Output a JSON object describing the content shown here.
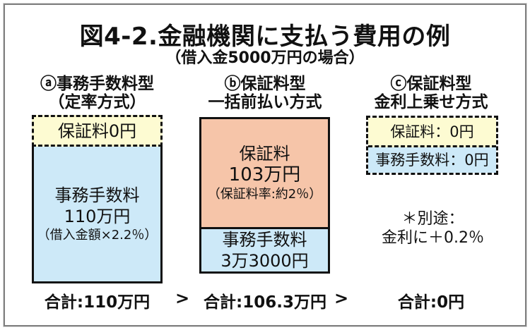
{
  "title": "図4-2.金融機関に支払う費用の例",
  "subtitle": "（借入金5000万円の場合）",
  "columns": {
    "a": {
      "header1": "ⓐ事務手数料型",
      "header2": "（定率方式）",
      "guarantee_label": "保証料0円",
      "fee_line1": "事務手数料",
      "fee_line2": "110万円",
      "fee_line3": "（借入金額×2.2％）",
      "total": "合計:110万円"
    },
    "b": {
      "header1": "ⓑ保証料型",
      "header2": "一括前払い方式",
      "guarantee_line1": "保証料",
      "guarantee_line2": "103万円",
      "guarantee_line3": "（保証料率:約2％）",
      "fee_line1": "事務手数料",
      "fee_line2": "3万3000円",
      "total": "合計:106.3万円"
    },
    "c": {
      "header1": "ⓒ保証料型",
      "header2": "金利上乗せ方式",
      "guarantee_label": "保証料：0円",
      "fee_label": "事務手数料：0円",
      "note_line1": "＊別途：",
      "note_line2": "金利に＋0.2％",
      "total": "合計:0円"
    }
  },
  "comparators": {
    "ab": ">",
    "bc": ">"
  },
  "colors": {
    "guarantee_zero_bg": "#FDFBD2",
    "fee_bg": "#CDE9F8",
    "guarantee_paid_bg": "#F6C5A9",
    "box_border": "#111111",
    "frame_border": "#7F7F7F"
  },
  "chart_data": {
    "type": "bar",
    "subtype": "stacked-cost-comparison",
    "title": "図4-2.金融機関に支払う費用の例",
    "subtitle": "（借入金5000万円の場合）",
    "categories": [
      "ⓐ事務手数料型（定率方式）",
      "ⓑ保証料型 一括前払い方式",
      "ⓒ保証料型 金利上乗せ方式"
    ],
    "series": [
      {
        "name": "保証料",
        "values": [
          0,
          103,
          0
        ],
        "unit": "万円",
        "color": "#F6C5A9",
        "zero_color": "#FDFBD2"
      },
      {
        "name": "事務手数料",
        "values": [
          110,
          3.3,
          0
        ],
        "unit": "万円",
        "color": "#CDE9F8"
      }
    ],
    "totals": {
      "values": [
        110,
        106.3,
        0
      ],
      "unit": "万円",
      "labels": [
        "合計:110万円",
        "合計:106.3万円",
        "合計:0円"
      ]
    },
    "comparison": "110万円 > 106.3万円 > 0円",
    "annotations": [
      "（借入金額×2.2％）",
      "（保証料率:約2％）",
      "＊別途：金利に＋0.2％"
    ],
    "legend": false,
    "axes": false
  }
}
